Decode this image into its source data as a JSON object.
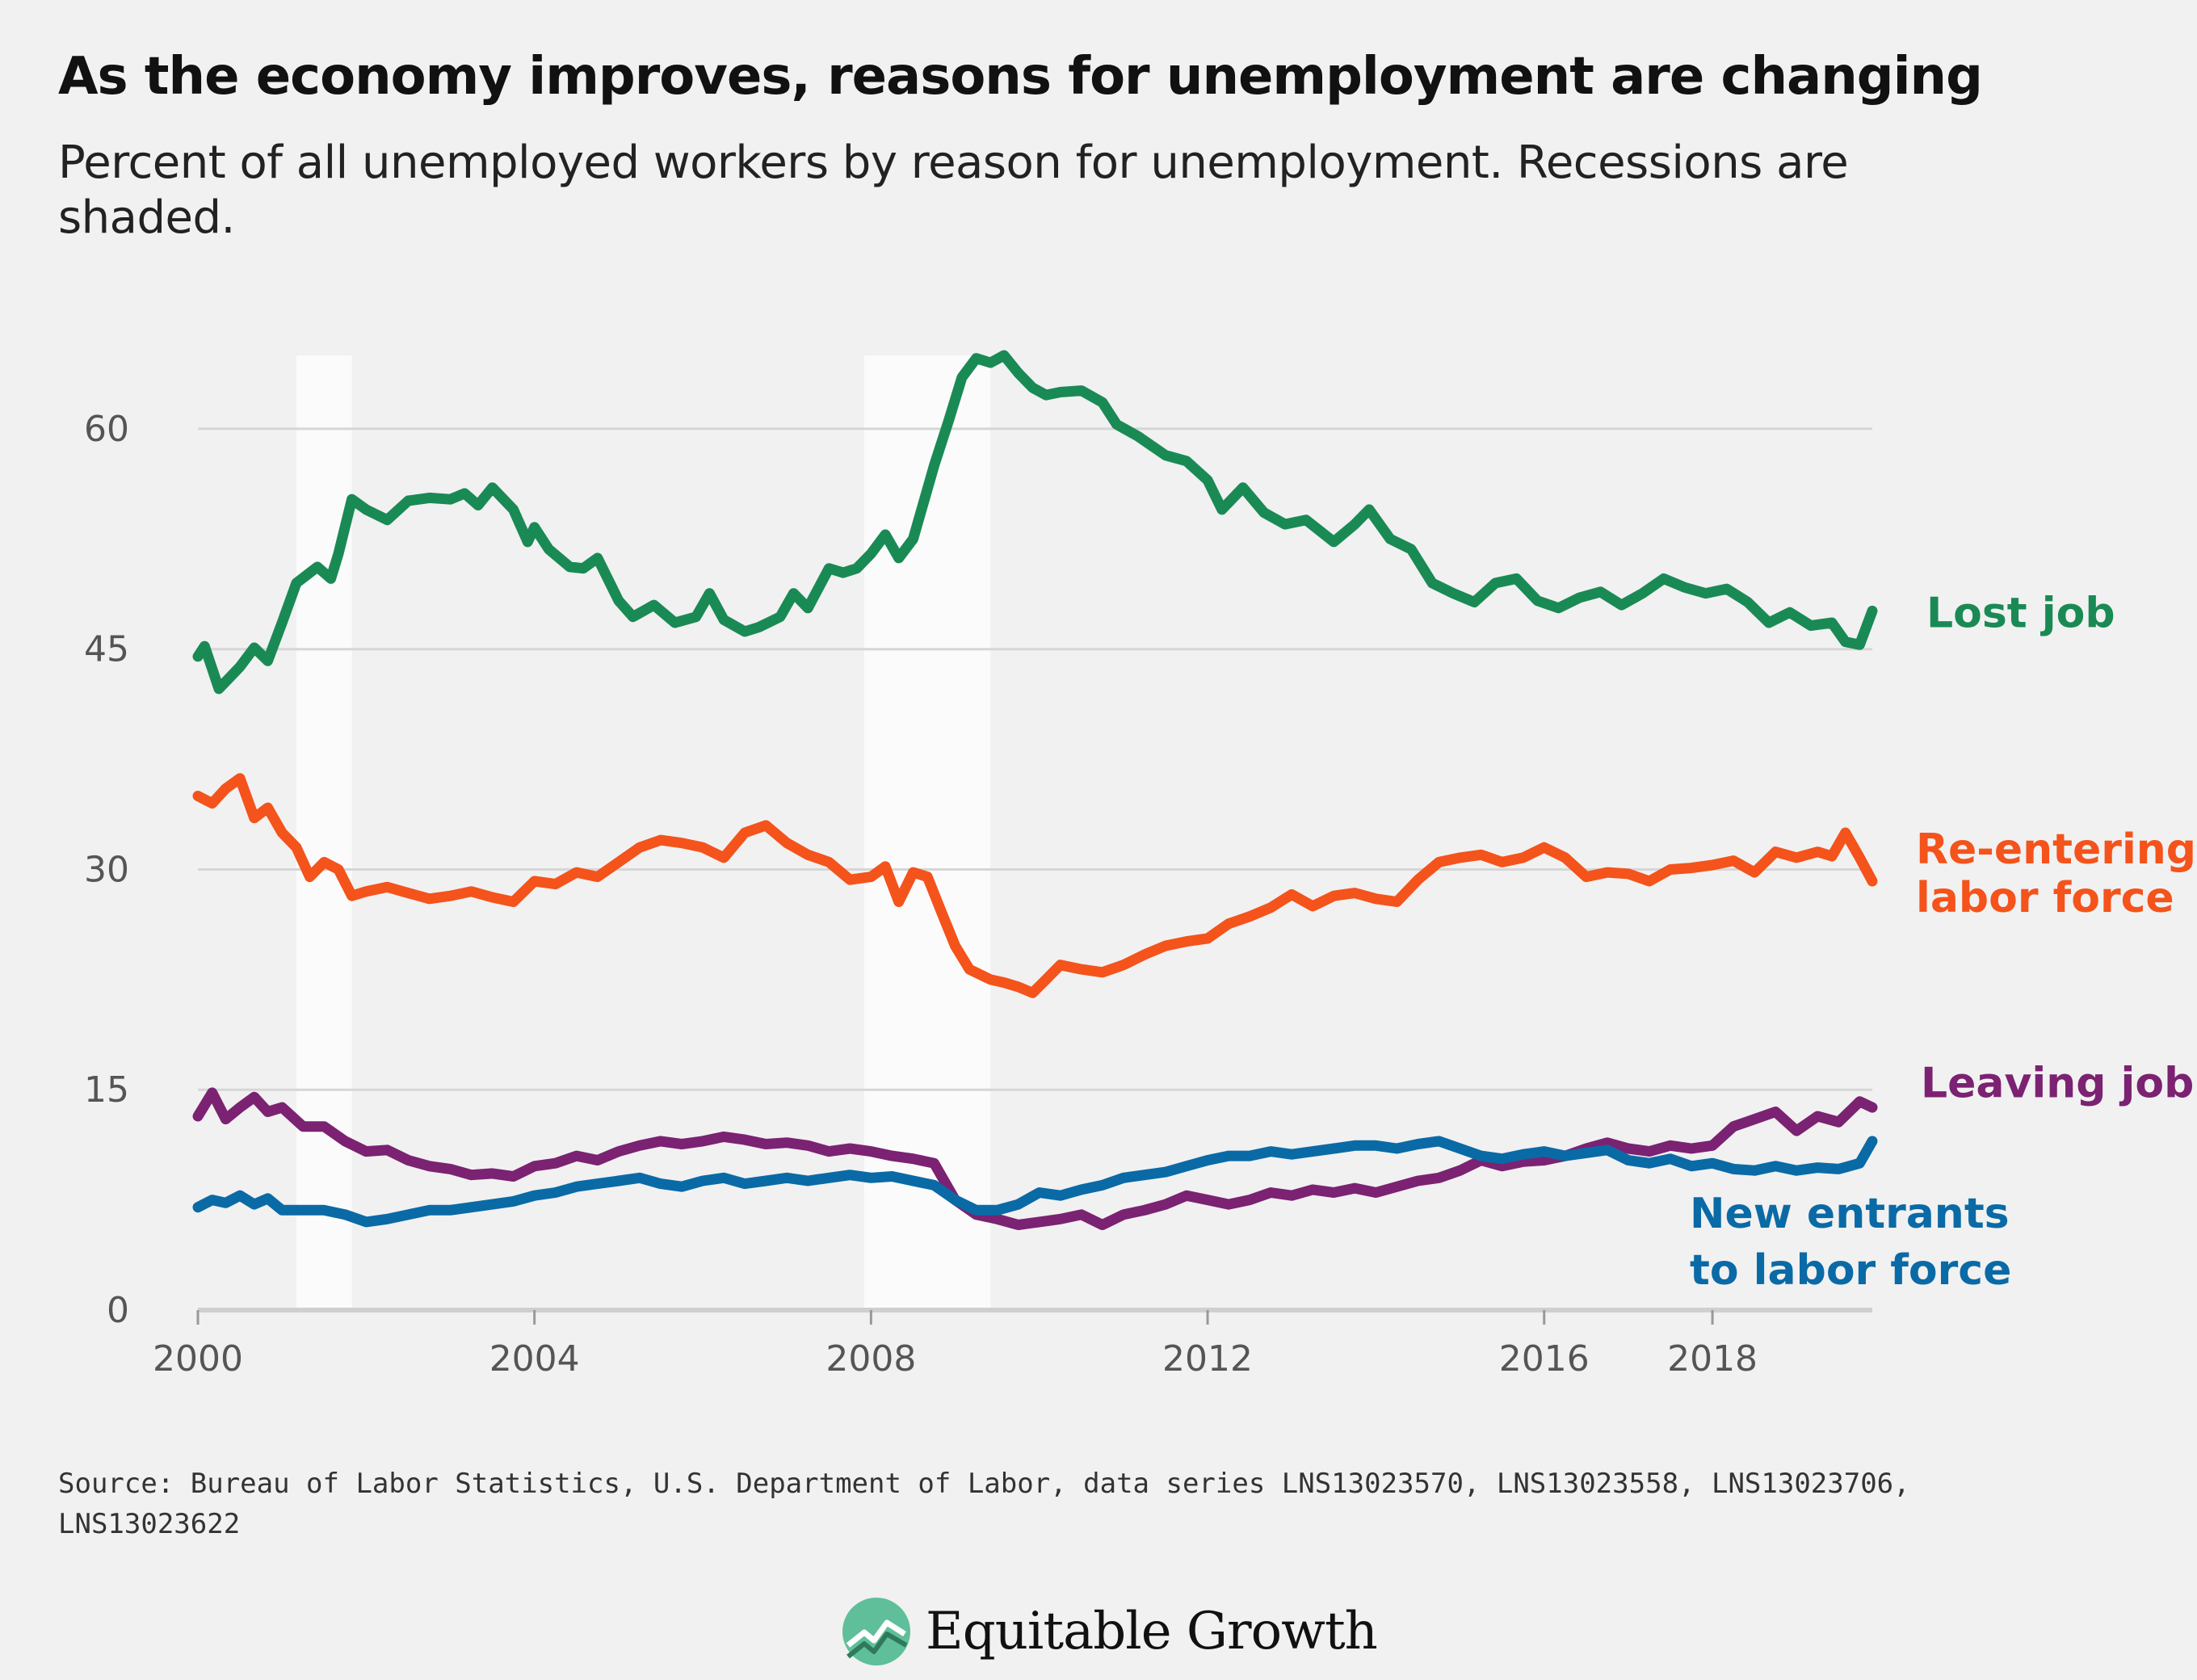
{
  "title": "As the economy improves, reasons for unemployment are changing",
  "subtitle": "Percent of all unemployed workers by reason for unemployment. Recessions are shaded.",
  "source": "Source: Bureau of Labor Statistics, U.S. Department of Labor, data series LNS13023570, LNS13023558, LNS13023706, LNS13023622",
  "brand": {
    "name": "Equitable Growth",
    "logo_icon": "chart-circle-logo-icon"
  },
  "colors": {
    "background": "#f1f1f1",
    "grid": "#d6d6d6",
    "recession": "#fbfbfb"
  },
  "chart_data": {
    "type": "line",
    "xlim": [
      2000,
      2019.9
    ],
    "ylim": [
      0,
      65
    ],
    "x_ticks": [
      2000,
      2004,
      2008,
      2012,
      2016,
      2018
    ],
    "x_tick_labels": [
      "2000",
      "2004",
      "2008",
      "2012",
      "2016",
      "2018"
    ],
    "y_ticks": [
      0,
      15,
      30,
      45,
      60
    ],
    "y_tick_labels": [
      "0",
      "15",
      "30",
      "45",
      "60"
    ],
    "grid": true,
    "legend": "direct labels at line ends",
    "recessions": [
      [
        2001.17,
        2001.83
      ],
      [
        2007.92,
        2009.42
      ]
    ],
    "series": [
      {
        "name": "Lost job",
        "label_lines": [
          "Lost job"
        ],
        "color": "#1a8a55",
        "x": [
          2000.0,
          2000.08,
          2000.25,
          2000.5,
          2000.67,
          2000.83,
          2001.0,
          2001.17,
          2001.33,
          2001.42,
          2001.58,
          2001.67,
          2001.83,
          2002.0,
          2002.25,
          2002.5,
          2002.75,
          2003.0,
          2003.17,
          2003.33,
          2003.5,
          2003.75,
          2003.92,
          2004.0,
          2004.17,
          2004.42,
          2004.58,
          2004.75,
          2005.0,
          2005.17,
          2005.42,
          2005.67,
          2005.92,
          2006.08,
          2006.25,
          2006.5,
          2006.67,
          2006.92,
          2007.08,
          2007.25,
          2007.5,
          2007.67,
          2007.83,
          2008.0,
          2008.17,
          2008.33,
          2008.5,
          2008.75,
          2008.92,
          2009.08,
          2009.25,
          2009.42,
          2009.58,
          2009.75,
          2009.92,
          2010.08,
          2010.25,
          2010.5,
          2010.75,
          2010.92,
          2011.17,
          2011.5,
          2011.75,
          2012.0,
          2012.17,
          2012.42,
          2012.67,
          2012.92,
          2013.17,
          2013.5,
          2013.75,
          2013.92,
          2014.17,
          2014.42,
          2014.67,
          2014.92,
          2015.17,
          2015.42,
          2015.67,
          2015.92,
          2016.17,
          2016.42,
          2016.67,
          2016.92,
          2017.17,
          2017.42,
          2017.67,
          2017.92,
          2018.17,
          2018.42,
          2018.67,
          2018.92,
          2019.17,
          2019.42,
          2019.58,
          2019.75,
          2019.9
        ],
        "values": [
          44.5,
          45.2,
          42.3,
          43.8,
          45.1,
          44.2,
          46.8,
          49.5,
          50.2,
          50.6,
          49.8,
          51.5,
          55.2,
          54.5,
          53.8,
          55.1,
          55.3,
          55.2,
          55.6,
          54.8,
          56.0,
          54.5,
          52.3,
          53.3,
          51.8,
          50.6,
          50.5,
          51.2,
          48.3,
          47.2,
          48.0,
          46.8,
          47.2,
          48.8,
          47.0,
          46.2,
          46.5,
          47.2,
          48.8,
          47.8,
          50.5,
          50.2,
          50.5,
          51.5,
          52.8,
          51.2,
          52.5,
          57.5,
          60.5,
          63.5,
          64.8,
          64.5,
          65.0,
          63.8,
          62.8,
          62.3,
          62.5,
          62.6,
          61.8,
          60.3,
          59.5,
          58.2,
          57.8,
          56.5,
          54.5,
          56.0,
          54.3,
          53.5,
          53.8,
          52.3,
          53.5,
          54.5,
          52.5,
          51.8,
          49.5,
          48.8,
          48.2,
          49.5,
          49.8,
          48.3,
          47.8,
          48.5,
          48.9,
          48.0,
          48.8,
          49.8,
          49.2,
          48.8,
          49.1,
          48.2,
          46.8,
          47.5,
          46.6,
          46.8,
          45.5,
          45.3,
          47.6
        ]
      },
      {
        "name": "Re-entering labor force",
        "label_lines": [
          "Re-entering",
          "labor force"
        ],
        "color": "#f4531b",
        "x": [
          2000.0,
          2000.17,
          2000.33,
          2000.5,
          2000.67,
          2000.83,
          2001.0,
          2001.17,
          2001.33,
          2001.5,
          2001.67,
          2001.83,
          2002.0,
          2002.25,
          2002.5,
          2002.75,
          2003.0,
          2003.25,
          2003.5,
          2003.75,
          2004.0,
          2004.25,
          2004.5,
          2004.75,
          2005.0,
          2005.25,
          2005.5,
          2005.75,
          2006.0,
          2006.25,
          2006.5,
          2006.75,
          2007.0,
          2007.25,
          2007.5,
          2007.75,
          2008.0,
          2008.17,
          2008.33,
          2008.5,
          2008.67,
          2008.83,
          2009.0,
          2009.17,
          2009.42,
          2009.58,
          2009.75,
          2009.92,
          2010.08,
          2010.25,
          2010.5,
          2010.75,
          2011.0,
          2011.25,
          2011.5,
          2011.75,
          2012.0,
          2012.25,
          2012.5,
          2012.75,
          2013.0,
          2013.25,
          2013.5,
          2013.75,
          2014.0,
          2014.25,
          2014.5,
          2014.75,
          2015.0,
          2015.25,
          2015.5,
          2015.75,
          2016.0,
          2016.25,
          2016.5,
          2016.75,
          2017.0,
          2017.25,
          2017.5,
          2017.75,
          2018.0,
          2018.25,
          2018.5,
          2018.75,
          2019.0,
          2019.25,
          2019.42,
          2019.58,
          2019.75,
          2019.9
        ],
        "values": [
          35.0,
          34.5,
          35.5,
          36.2,
          33.5,
          34.2,
          32.5,
          31.5,
          29.5,
          30.5,
          30.0,
          28.2,
          28.5,
          28.8,
          28.4,
          28.0,
          28.2,
          28.5,
          28.1,
          27.8,
          29.2,
          29.0,
          29.8,
          29.5,
          30.5,
          31.5,
          32.0,
          31.8,
          31.5,
          30.8,
          32.5,
          33.0,
          31.8,
          31.0,
          30.5,
          29.3,
          29.5,
          30.2,
          27.8,
          29.8,
          29.5,
          27.2,
          24.8,
          23.2,
          22.5,
          22.3,
          22.0,
          21.6,
          22.5,
          23.5,
          23.2,
          23.0,
          23.5,
          24.2,
          24.8,
          25.1,
          25.3,
          26.3,
          26.8,
          27.4,
          28.3,
          27.5,
          28.2,
          28.4,
          28.0,
          27.8,
          29.3,
          30.5,
          30.8,
          31.0,
          30.5,
          30.8,
          31.5,
          30.8,
          29.5,
          29.8,
          29.7,
          29.2,
          30.0,
          30.1,
          30.3,
          30.6,
          29.8,
          31.2,
          30.8,
          31.2,
          30.9,
          32.5,
          30.8,
          29.2
        ]
      },
      {
        "name": "Leaving job",
        "label_lines": [
          "Leaving job"
        ],
        "color": "#7b2272",
        "x": [
          2000.0,
          2000.17,
          2000.33,
          2000.5,
          2000.67,
          2000.83,
          2001.0,
          2001.25,
          2001.5,
          2001.75,
          2002.0,
          2002.25,
          2002.5,
          2002.75,
          2003.0,
          2003.25,
          2003.5,
          2003.75,
          2004.0,
          2004.25,
          2004.5,
          2004.75,
          2005.0,
          2005.25,
          2005.5,
          2005.75,
          2006.0,
          2006.25,
          2006.5,
          2006.75,
          2007.0,
          2007.25,
          2007.5,
          2007.75,
          2008.0,
          2008.25,
          2008.5,
          2008.75,
          2009.0,
          2009.25,
          2009.5,
          2009.75,
          2010.0,
          2010.25,
          2010.5,
          2010.75,
          2011.0,
          2011.25,
          2011.5,
          2011.75,
          2012.0,
          2012.25,
          2012.5,
          2012.75,
          2013.0,
          2013.25,
          2013.5,
          2013.75,
          2014.0,
          2014.25,
          2014.5,
          2014.75,
          2015.0,
          2015.25,
          2015.5,
          2015.75,
          2016.0,
          2016.25,
          2016.5,
          2016.75,
          2017.0,
          2017.25,
          2017.5,
          2017.75,
          2018.0,
          2018.25,
          2018.5,
          2018.75,
          2019.0,
          2019.25,
          2019.5,
          2019.75,
          2019.9
        ],
        "values": [
          13.2,
          14.8,
          13.0,
          13.8,
          14.5,
          13.5,
          13.8,
          12.5,
          12.5,
          11.5,
          10.8,
          10.9,
          10.2,
          9.8,
          9.6,
          9.2,
          9.3,
          9.1,
          9.8,
          10.0,
          10.5,
          10.2,
          10.8,
          11.2,
          11.5,
          11.3,
          11.5,
          11.8,
          11.6,
          11.3,
          11.4,
          11.2,
          10.8,
          11.0,
          10.8,
          10.5,
          10.3,
          10.0,
          7.5,
          6.5,
          6.2,
          5.8,
          6.0,
          6.2,
          6.5,
          5.8,
          6.5,
          6.8,
          7.2,
          7.8,
          7.5,
          7.2,
          7.5,
          8.0,
          7.8,
          8.2,
          8.0,
          8.3,
          8.0,
          8.4,
          8.8,
          9.0,
          9.5,
          10.2,
          9.8,
          10.1,
          10.2,
          10.5,
          11.0,
          11.4,
          11.0,
          10.8,
          11.2,
          11.0,
          11.2,
          12.5,
          13.0,
          13.5,
          12.2,
          13.2,
          12.8,
          14.2,
          13.8
        ]
      },
      {
        "name": "New entrants to labor force",
        "label_lines": [
          "New entrants",
          "to labor force"
        ],
        "color": "#0a6aa6",
        "x": [
          2000.0,
          2000.17,
          2000.33,
          2000.5,
          2000.67,
          2000.83,
          2001.0,
          2001.25,
          2001.5,
          2001.75,
          2002.0,
          2002.25,
          2002.5,
          2002.75,
          2003.0,
          2003.25,
          2003.5,
          2003.75,
          2004.0,
          2004.25,
          2004.5,
          2004.75,
          2005.0,
          2005.25,
          2005.5,
          2005.75,
          2006.0,
          2006.25,
          2006.5,
          2006.75,
          2007.0,
          2007.25,
          2007.5,
          2007.75,
          2008.0,
          2008.25,
          2008.5,
          2008.75,
          2009.0,
          2009.25,
          2009.5,
          2009.75,
          2010.0,
          2010.25,
          2010.5,
          2010.75,
          2011.0,
          2011.25,
          2011.5,
          2011.75,
          2012.0,
          2012.25,
          2012.5,
          2012.75,
          2013.0,
          2013.25,
          2013.5,
          2013.75,
          2014.0,
          2014.25,
          2014.5,
          2014.75,
          2015.0,
          2015.25,
          2015.5,
          2015.75,
          2016.0,
          2016.25,
          2016.5,
          2016.75,
          2017.0,
          2017.25,
          2017.5,
          2017.75,
          2018.0,
          2018.25,
          2018.5,
          2018.75,
          2019.0,
          2019.25,
          2019.5,
          2019.75,
          2019.9
        ],
        "values": [
          7.0,
          7.5,
          7.3,
          7.8,
          7.2,
          7.6,
          6.8,
          6.8,
          6.8,
          6.5,
          6.0,
          6.2,
          6.5,
          6.8,
          6.8,
          7.0,
          7.2,
          7.4,
          7.8,
          8.0,
          8.4,
          8.6,
          8.8,
          9.0,
          8.6,
          8.4,
          8.8,
          9.0,
          8.6,
          8.8,
          9.0,
          8.8,
          9.0,
          9.2,
          9.0,
          9.1,
          8.8,
          8.5,
          7.5,
          6.8,
          6.8,
          7.2,
          8.0,
          7.8,
          8.2,
          8.5,
          9.0,
          9.2,
          9.4,
          9.8,
          10.2,
          10.5,
          10.5,
          10.8,
          10.6,
          10.8,
          11.0,
          11.2,
          11.2,
          11.0,
          11.3,
          11.5,
          11.0,
          10.5,
          10.3,
          10.6,
          10.8,
          10.5,
          10.7,
          10.9,
          10.2,
          10.0,
          10.3,
          9.8,
          10.0,
          9.6,
          9.5,
          9.8,
          9.5,
          9.7,
          9.6,
          10.0,
          11.5
        ]
      }
    ]
  }
}
